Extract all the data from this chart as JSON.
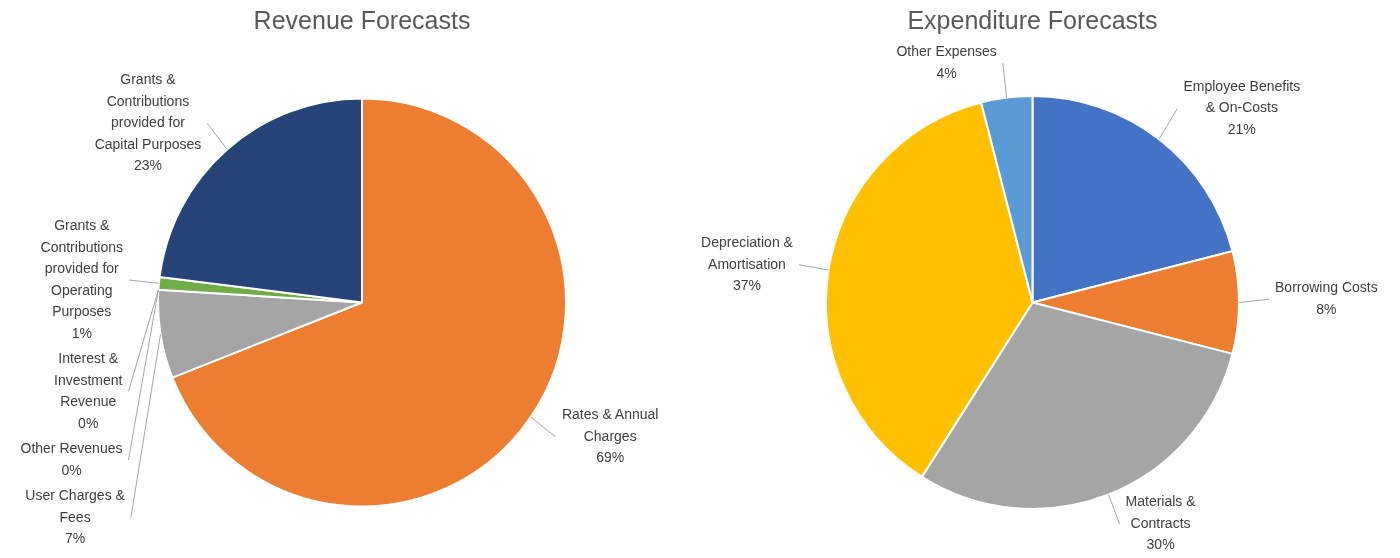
{
  "chart_data": [
    {
      "type": "pie",
      "title": "Revenue Forecasts",
      "legend": false,
      "categories": [
        "Rates & Annual Charges",
        "User Charges & Fees",
        "Interest & Investment Revenue",
        "Other Revenues",
        "Grants & Contributions provided for Operating Purposes",
        "Grants & Contributions provided for Capital Purposes"
      ],
      "values": [
        69,
        7,
        0,
        0,
        1,
        23
      ],
      "value_labels": [
        "69%",
        "7%",
        "0%",
        "0%",
        "1%",
        "23%"
      ],
      "colors": [
        "#ed7d31",
        "#a5a5a5",
        "#ffc000",
        "#5b9bd5",
        "#70ad47",
        "#264478"
      ]
    },
    {
      "type": "pie",
      "title": "Expenditure Forecasts",
      "legend": false,
      "categories": [
        "Employee Benefits & On-Costs",
        "Borrowing Costs",
        "Materials & Contracts",
        "Depreciation & Amortisation",
        "Other Expenses"
      ],
      "values": [
        21,
        8,
        30,
        37,
        4
      ],
      "value_labels": [
        "21%",
        "8%",
        "30%",
        "37%",
        "4%"
      ],
      "colors": [
        "#4472c4",
        "#ed7d31",
        "#a5a5a5",
        "#ffc000",
        "#5b9bd5"
      ]
    }
  ]
}
